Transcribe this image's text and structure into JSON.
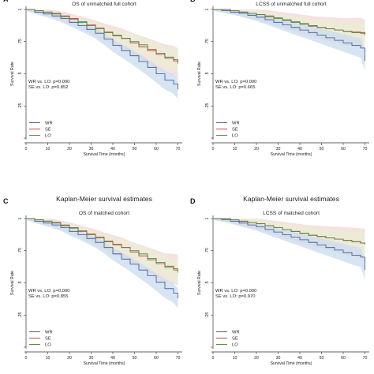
{
  "colors": {
    "WR": "#3b4f8e",
    "SE": "#b03a3a",
    "LO": "#4e7a34",
    "WR_band": "#c9dcef",
    "SE_band": "#f3d6d6",
    "LO_band": "#e9efd6"
  },
  "chart_data": [
    {
      "panel": "A",
      "type": "line",
      "title": "",
      "subtitle": "OS of unmatched full cohort",
      "xlabel": "Survival Time (months)",
      "ylabel": "Survival Rate",
      "xlim": [
        0,
        72
      ],
      "ylim": [
        0,
        1
      ],
      "xticks": [
        "0",
        "10",
        "20",
        "30",
        "40",
        "50",
        "60",
        "70"
      ],
      "yticks": [
        "",
        ".25",
        ".5",
        ".75",
        "1"
      ],
      "annotations": [
        "WR vs. LO: p=0.000",
        "SE vs. LO: p=0.852"
      ],
      "legend": [
        "WR",
        "SE",
        "LO"
      ],
      "series": [
        {
          "name": "WR",
          "x": [
            0,
            4,
            8,
            12,
            16,
            20,
            24,
            28,
            32,
            36,
            40,
            44,
            48,
            52,
            56,
            60,
            64,
            68,
            70
          ],
          "y": [
            1.0,
            0.98,
            0.965,
            0.95,
            0.93,
            0.9,
            0.875,
            0.845,
            0.815,
            0.77,
            0.72,
            0.68,
            0.64,
            0.595,
            0.55,
            0.5,
            0.45,
            0.42,
            0.38
          ]
        },
        {
          "name": "SE",
          "x": [
            0,
            4,
            8,
            12,
            16,
            20,
            24,
            28,
            32,
            36,
            40,
            44,
            48,
            52,
            56,
            60,
            64,
            68,
            70
          ],
          "y": [
            1.0,
            0.99,
            0.98,
            0.97,
            0.95,
            0.93,
            0.905,
            0.88,
            0.855,
            0.825,
            0.8,
            0.775,
            0.74,
            0.71,
            0.68,
            0.65,
            0.62,
            0.6,
            0.58
          ]
        },
        {
          "name": "LO",
          "x": [
            0,
            4,
            8,
            12,
            16,
            20,
            24,
            28,
            32,
            36,
            40,
            44,
            48,
            52,
            56,
            60,
            64,
            68,
            70
          ],
          "y": [
            1.0,
            0.99,
            0.98,
            0.965,
            0.945,
            0.925,
            0.9,
            0.875,
            0.85,
            0.82,
            0.795,
            0.775,
            0.75,
            0.725,
            0.69,
            0.66,
            0.63,
            0.61,
            0.6
          ]
        }
      ]
    },
    {
      "panel": "B",
      "type": "line",
      "title": "",
      "subtitle": "LCSS of unmatched full cohort",
      "xlabel": "Survival Time (months)",
      "ylabel": "Survival Rate",
      "xlim": [
        0,
        72
      ],
      "ylim": [
        0,
        1
      ],
      "xticks": [
        "0",
        "10",
        "20",
        "30",
        "40",
        "50",
        "60",
        "70"
      ],
      "yticks": [
        "",
        ".25",
        ".5",
        ".75",
        "1"
      ],
      "annotations": [
        "WR vs. LO: p=0.000",
        "SE vs. LO: p=0.665"
      ],
      "legend": [
        "WR",
        "SE",
        "LO"
      ],
      "series": [
        {
          "name": "WR",
          "x": [
            0,
            4,
            8,
            12,
            16,
            20,
            24,
            28,
            32,
            36,
            40,
            44,
            48,
            52,
            56,
            60,
            64,
            68,
            70
          ],
          "y": [
            1.0,
            0.99,
            0.98,
            0.97,
            0.955,
            0.94,
            0.92,
            0.9,
            0.88,
            0.86,
            0.84,
            0.82,
            0.8,
            0.78,
            0.76,
            0.74,
            0.72,
            0.7,
            0.6
          ]
        },
        {
          "name": "SE",
          "x": [
            0,
            4,
            8,
            12,
            16,
            20,
            24,
            28,
            32,
            36,
            40,
            44,
            48,
            52,
            56,
            60,
            64,
            68,
            70
          ],
          "y": [
            1.0,
            1.0,
            0.99,
            0.98,
            0.97,
            0.96,
            0.95,
            0.935,
            0.92,
            0.905,
            0.89,
            0.875,
            0.86,
            0.85,
            0.84,
            0.83,
            0.825,
            0.82,
            0.8
          ]
        },
        {
          "name": "LO",
          "x": [
            0,
            4,
            8,
            12,
            16,
            20,
            24,
            28,
            32,
            36,
            40,
            44,
            48,
            52,
            56,
            60,
            64,
            68,
            70
          ],
          "y": [
            1.0,
            1.0,
            0.99,
            0.98,
            0.97,
            0.96,
            0.945,
            0.93,
            0.915,
            0.9,
            0.885,
            0.87,
            0.86,
            0.85,
            0.84,
            0.83,
            0.82,
            0.815,
            0.81
          ]
        }
      ]
    },
    {
      "panel": "C",
      "type": "line",
      "title": "Kaplan-Meier survival estimates",
      "subtitle": "OS of matched cohort",
      "xlabel": "Survival Time (months)",
      "ylabel": "Survival Rate",
      "xlim": [
        0,
        72
      ],
      "ylim": [
        0,
        1
      ],
      "xticks": [
        "0",
        "10",
        "20",
        "30",
        "40",
        "50",
        "60",
        "70"
      ],
      "yticks": [
        "",
        ".25",
        ".5",
        ".75",
        "1"
      ],
      "annotations": [
        "WR vs. LO: p=0.000",
        "SE vs. LO: p=0.855"
      ],
      "legend": [
        "WR",
        "SE",
        "LO"
      ],
      "series": [
        {
          "name": "WR",
          "x": [
            0,
            4,
            8,
            12,
            16,
            20,
            24,
            28,
            32,
            36,
            40,
            44,
            48,
            52,
            56,
            60,
            64,
            68,
            70
          ],
          "y": [
            1.0,
            0.98,
            0.965,
            0.95,
            0.93,
            0.9,
            0.875,
            0.845,
            0.815,
            0.775,
            0.725,
            0.685,
            0.645,
            0.6,
            0.555,
            0.505,
            0.455,
            0.42,
            0.38
          ]
        },
        {
          "name": "SE",
          "x": [
            0,
            4,
            8,
            12,
            16,
            20,
            24,
            28,
            32,
            36,
            40,
            44,
            48,
            52,
            56,
            60,
            64,
            68,
            70
          ],
          "y": [
            1.0,
            0.99,
            0.98,
            0.97,
            0.95,
            0.93,
            0.905,
            0.88,
            0.855,
            0.825,
            0.8,
            0.775,
            0.74,
            0.71,
            0.68,
            0.65,
            0.62,
            0.61,
            0.6
          ]
        },
        {
          "name": "LO",
          "x": [
            0,
            4,
            8,
            12,
            16,
            20,
            24,
            28,
            32,
            36,
            40,
            44,
            48,
            52,
            56,
            60,
            64,
            68,
            70
          ],
          "y": [
            1.0,
            0.99,
            0.98,
            0.965,
            0.945,
            0.925,
            0.9,
            0.875,
            0.85,
            0.82,
            0.795,
            0.775,
            0.75,
            0.725,
            0.69,
            0.66,
            0.63,
            0.6,
            0.58
          ]
        }
      ]
    },
    {
      "panel": "D",
      "type": "line",
      "title": "Kaplan-Meier survival estimates",
      "subtitle": "LCSS of matched cohort",
      "xlabel": "Survival Time (months)",
      "ylabel": "Survival Rate",
      "xlim": [
        0,
        72
      ],
      "ylim": [
        0,
        1
      ],
      "xticks": [
        "0",
        "10",
        "20",
        "30",
        "40",
        "50",
        "60",
        "70"
      ],
      "yticks": [
        "",
        ".25",
        ".5",
        ".75",
        "1"
      ],
      "annotations": [
        "WR vs. LO: p=0.000",
        "SE vs. LO: p=0.970"
      ],
      "legend": [
        "WR",
        "SE",
        "LO"
      ],
      "series": [
        {
          "name": "WR",
          "x": [
            0,
            4,
            8,
            12,
            16,
            20,
            24,
            28,
            32,
            36,
            40,
            44,
            48,
            52,
            56,
            60,
            64,
            68,
            70
          ],
          "y": [
            1.0,
            0.99,
            0.98,
            0.965,
            0.95,
            0.935,
            0.915,
            0.895,
            0.875,
            0.855,
            0.835,
            0.815,
            0.795,
            0.775,
            0.755,
            0.735,
            0.715,
            0.7,
            0.6
          ]
        },
        {
          "name": "SE",
          "x": [
            0,
            4,
            8,
            12,
            16,
            20,
            24,
            28,
            32,
            36,
            40,
            44,
            48,
            52,
            56,
            60,
            64,
            68,
            70
          ],
          "y": [
            1.0,
            1.0,
            0.99,
            0.98,
            0.97,
            0.96,
            0.945,
            0.93,
            0.915,
            0.9,
            0.885,
            0.87,
            0.86,
            0.85,
            0.84,
            0.83,
            0.82,
            0.81,
            0.8
          ]
        },
        {
          "name": "LO",
          "x": [
            0,
            4,
            8,
            12,
            16,
            20,
            24,
            28,
            32,
            36,
            40,
            44,
            48,
            52,
            56,
            60,
            64,
            68,
            70
          ],
          "y": [
            1.0,
            1.0,
            0.99,
            0.98,
            0.97,
            0.96,
            0.945,
            0.93,
            0.915,
            0.9,
            0.885,
            0.87,
            0.86,
            0.85,
            0.84,
            0.83,
            0.82,
            0.81,
            0.8
          ]
        }
      ]
    }
  ],
  "panel_letters": [
    "A",
    "B",
    "C",
    "D"
  ]
}
